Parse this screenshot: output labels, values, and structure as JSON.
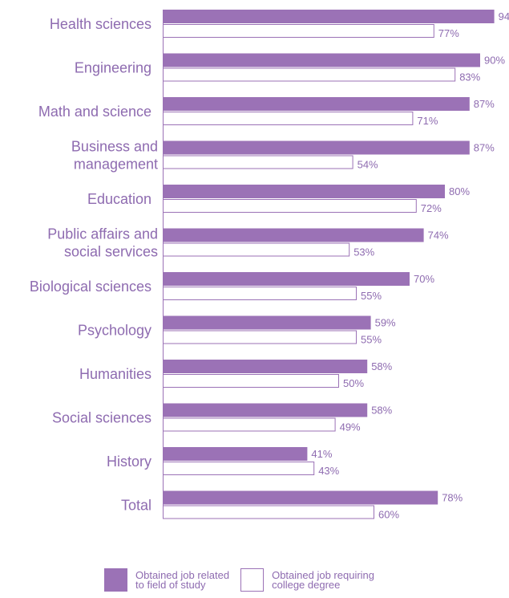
{
  "colors": {
    "accent": "#9b72b6",
    "text": "#8e6bb0",
    "background": "#ffffff"
  },
  "chart_data": {
    "type": "bar",
    "orientation": "horizontal",
    "categories": [
      "Health sciences",
      "Engineering",
      "Math and science",
      "Business and\nmanagement",
      "Education",
      "Public affairs and\nsocial services",
      "Biological sciences",
      "Psychology",
      "Humanities",
      "Social sciences",
      "History",
      "Total"
    ],
    "series": [
      {
        "name": "Obtained job related\nto field of study",
        "values": [
          94,
          90,
          87,
          87,
          80,
          74,
          70,
          59,
          58,
          58,
          41,
          78
        ]
      },
      {
        "name": "Obtained job requiring\ncollege degree",
        "values": [
          77,
          83,
          71,
          54,
          72,
          53,
          55,
          55,
          50,
          49,
          43,
          60
        ]
      }
    ],
    "value_suffix": "%",
    "xlim": [
      0,
      100
    ],
    "grid": false,
    "legend_placement": "bottom"
  }
}
